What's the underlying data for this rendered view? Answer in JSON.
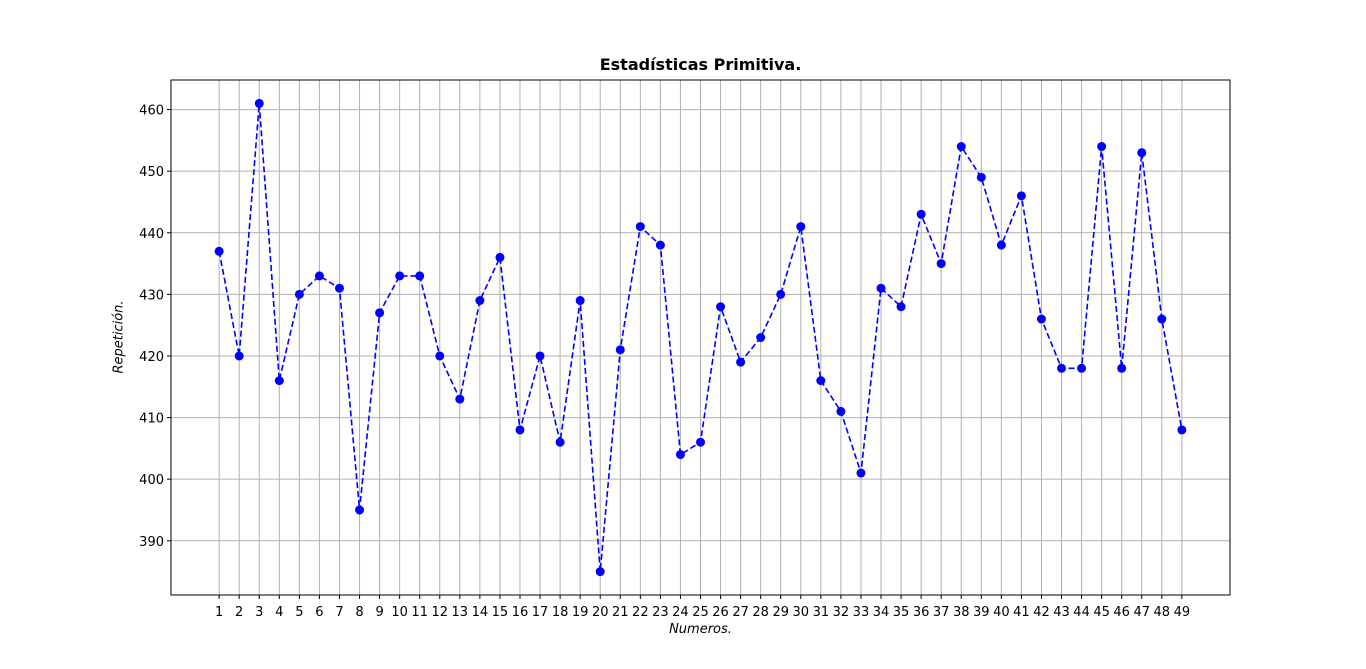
{
  "chart_data": {
    "type": "line",
    "title": "Estadísticas Primitiva.",
    "xlabel": "Numeros.",
    "ylabel": "Repetición.",
    "x": [
      1,
      2,
      3,
      4,
      5,
      6,
      7,
      8,
      9,
      10,
      11,
      12,
      13,
      14,
      15,
      16,
      17,
      18,
      19,
      20,
      21,
      22,
      23,
      24,
      25,
      26,
      27,
      28,
      29,
      30,
      31,
      32,
      33,
      34,
      35,
      36,
      37,
      38,
      39,
      40,
      41,
      42,
      43,
      44,
      45,
      46,
      47,
      48,
      49
    ],
    "series": [
      {
        "values": [
          437,
          420,
          461,
          416,
          430,
          433,
          431,
          395,
          427,
          433,
          433,
          420,
          413,
          429,
          436,
          408,
          420,
          406,
          429,
          385,
          421,
          441,
          438,
          404,
          406,
          428,
          419,
          423,
          430,
          441,
          416,
          411,
          401,
          431,
          428,
          443,
          435,
          454,
          449,
          438,
          446,
          426,
          418,
          418,
          454,
          418,
          453,
          426,
          408
        ],
        "color": "#0000ff",
        "linestyle": "dashed",
        "marker": "circle"
      }
    ],
    "xticks": [
      "1",
      "2",
      "3",
      "4",
      "5",
      "6",
      "7",
      "8",
      "9",
      "10",
      "11",
      "12",
      "13",
      "14",
      "15",
      "16",
      "17",
      "18",
      "19",
      "20",
      "21",
      "22",
      "23",
      "24",
      "25",
      "26",
      "27",
      "28",
      "29",
      "30",
      "31",
      "32",
      "33",
      "34",
      "35",
      "36",
      "37",
      "38",
      "39",
      "40",
      "41",
      "42",
      "43",
      "44",
      "45",
      "46",
      "47",
      "48",
      "49"
    ],
    "yticks": [
      390,
      400,
      410,
      420,
      430,
      440,
      450,
      460
    ],
    "xlim": [
      -1.4,
      51.4
    ],
    "ylim": [
      381.2,
      464.8
    ],
    "grid": true,
    "grid_color": "#b0b0b0",
    "axes_color": "#000000"
  }
}
